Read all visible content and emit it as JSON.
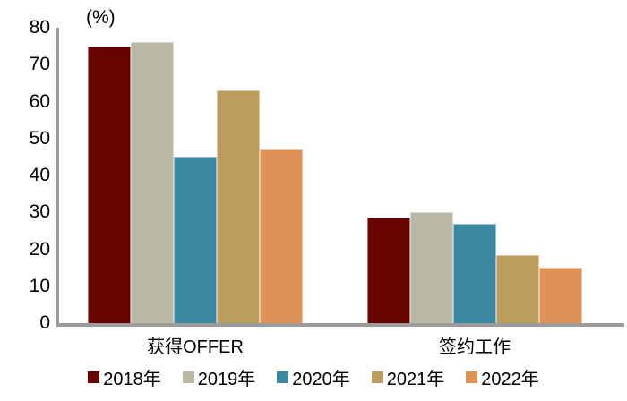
{
  "chart_data": {
    "type": "bar",
    "title": "",
    "unit_label": "(%)",
    "categories": [
      "获得OFFER",
      "签约工作"
    ],
    "category_slugs": [
      "offer",
      "signed-job"
    ],
    "series": [
      {
        "name": "2018年",
        "slug": "2018",
        "color": "#680400",
        "values": [
          75,
          28.5
        ]
      },
      {
        "name": "2019年",
        "slug": "2019",
        "color": "#B9B8A7",
        "values": [
          76,
          30
        ]
      },
      {
        "name": "2020年",
        "slug": "2020",
        "color": "#3C87A0",
        "values": [
          45,
          27
        ]
      },
      {
        "name": "2021年",
        "slug": "2021",
        "color": "#BD9D5D",
        "values": [
          63,
          18.5
        ]
      },
      {
        "name": "2022年",
        "slug": "2022",
        "color": "#DE9256",
        "values": [
          47,
          15
        ]
      }
    ],
    "y_axis": {
      "min": 0,
      "max": 80,
      "tick_step": 10,
      "ticks": [
        0,
        10,
        20,
        30,
        40,
        50,
        60,
        70,
        80
      ]
    },
    "legend_position": "bottom",
    "grid": false,
    "axis_color": "#9B9B9B",
    "text_color": "#000000",
    "background_color": "#FFFFFF"
  }
}
